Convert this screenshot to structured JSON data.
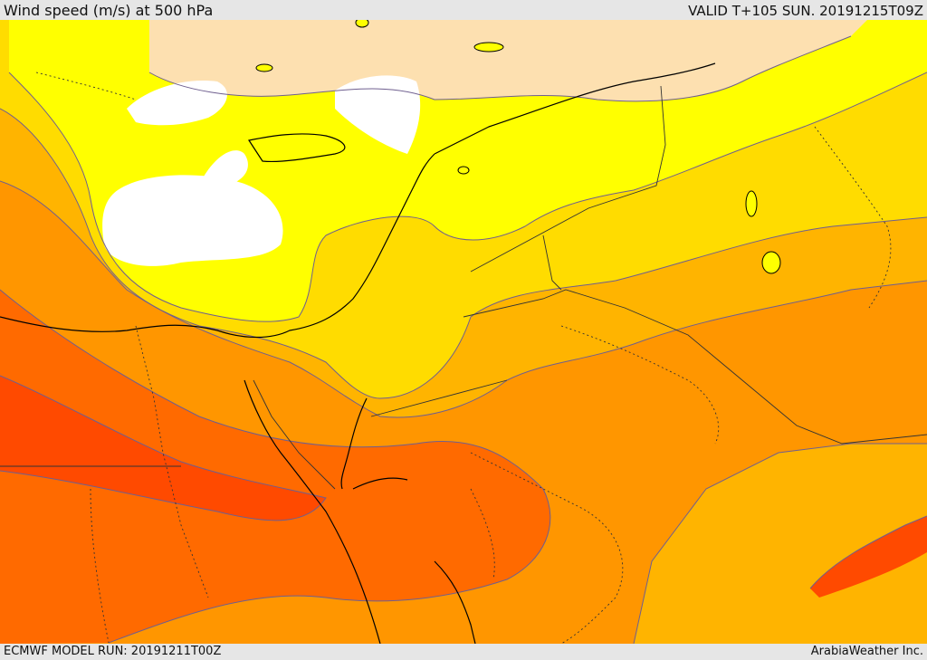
{
  "header": {
    "title": "Wind speed (m/s) at 500 hPa",
    "valid": "VALID T+105 SUN. 20191215T09Z"
  },
  "footer": {
    "model_run": "ECMWF MODEL RUN: 20191211T00Z",
    "brand": "ArabiaWeather Inc."
  },
  "map": {
    "colors": {
      "calm": "#ffffff",
      "band1": "#fde0b0",
      "band2": "#ffff00",
      "band3": "#ffdc00",
      "band4": "#ffb400",
      "band5": "#ff9600",
      "band6": "#ff6a00",
      "band7": "#ff4a00",
      "contour": "#6f5f8f",
      "coast": "#000000",
      "border": "#333333"
    }
  }
}
